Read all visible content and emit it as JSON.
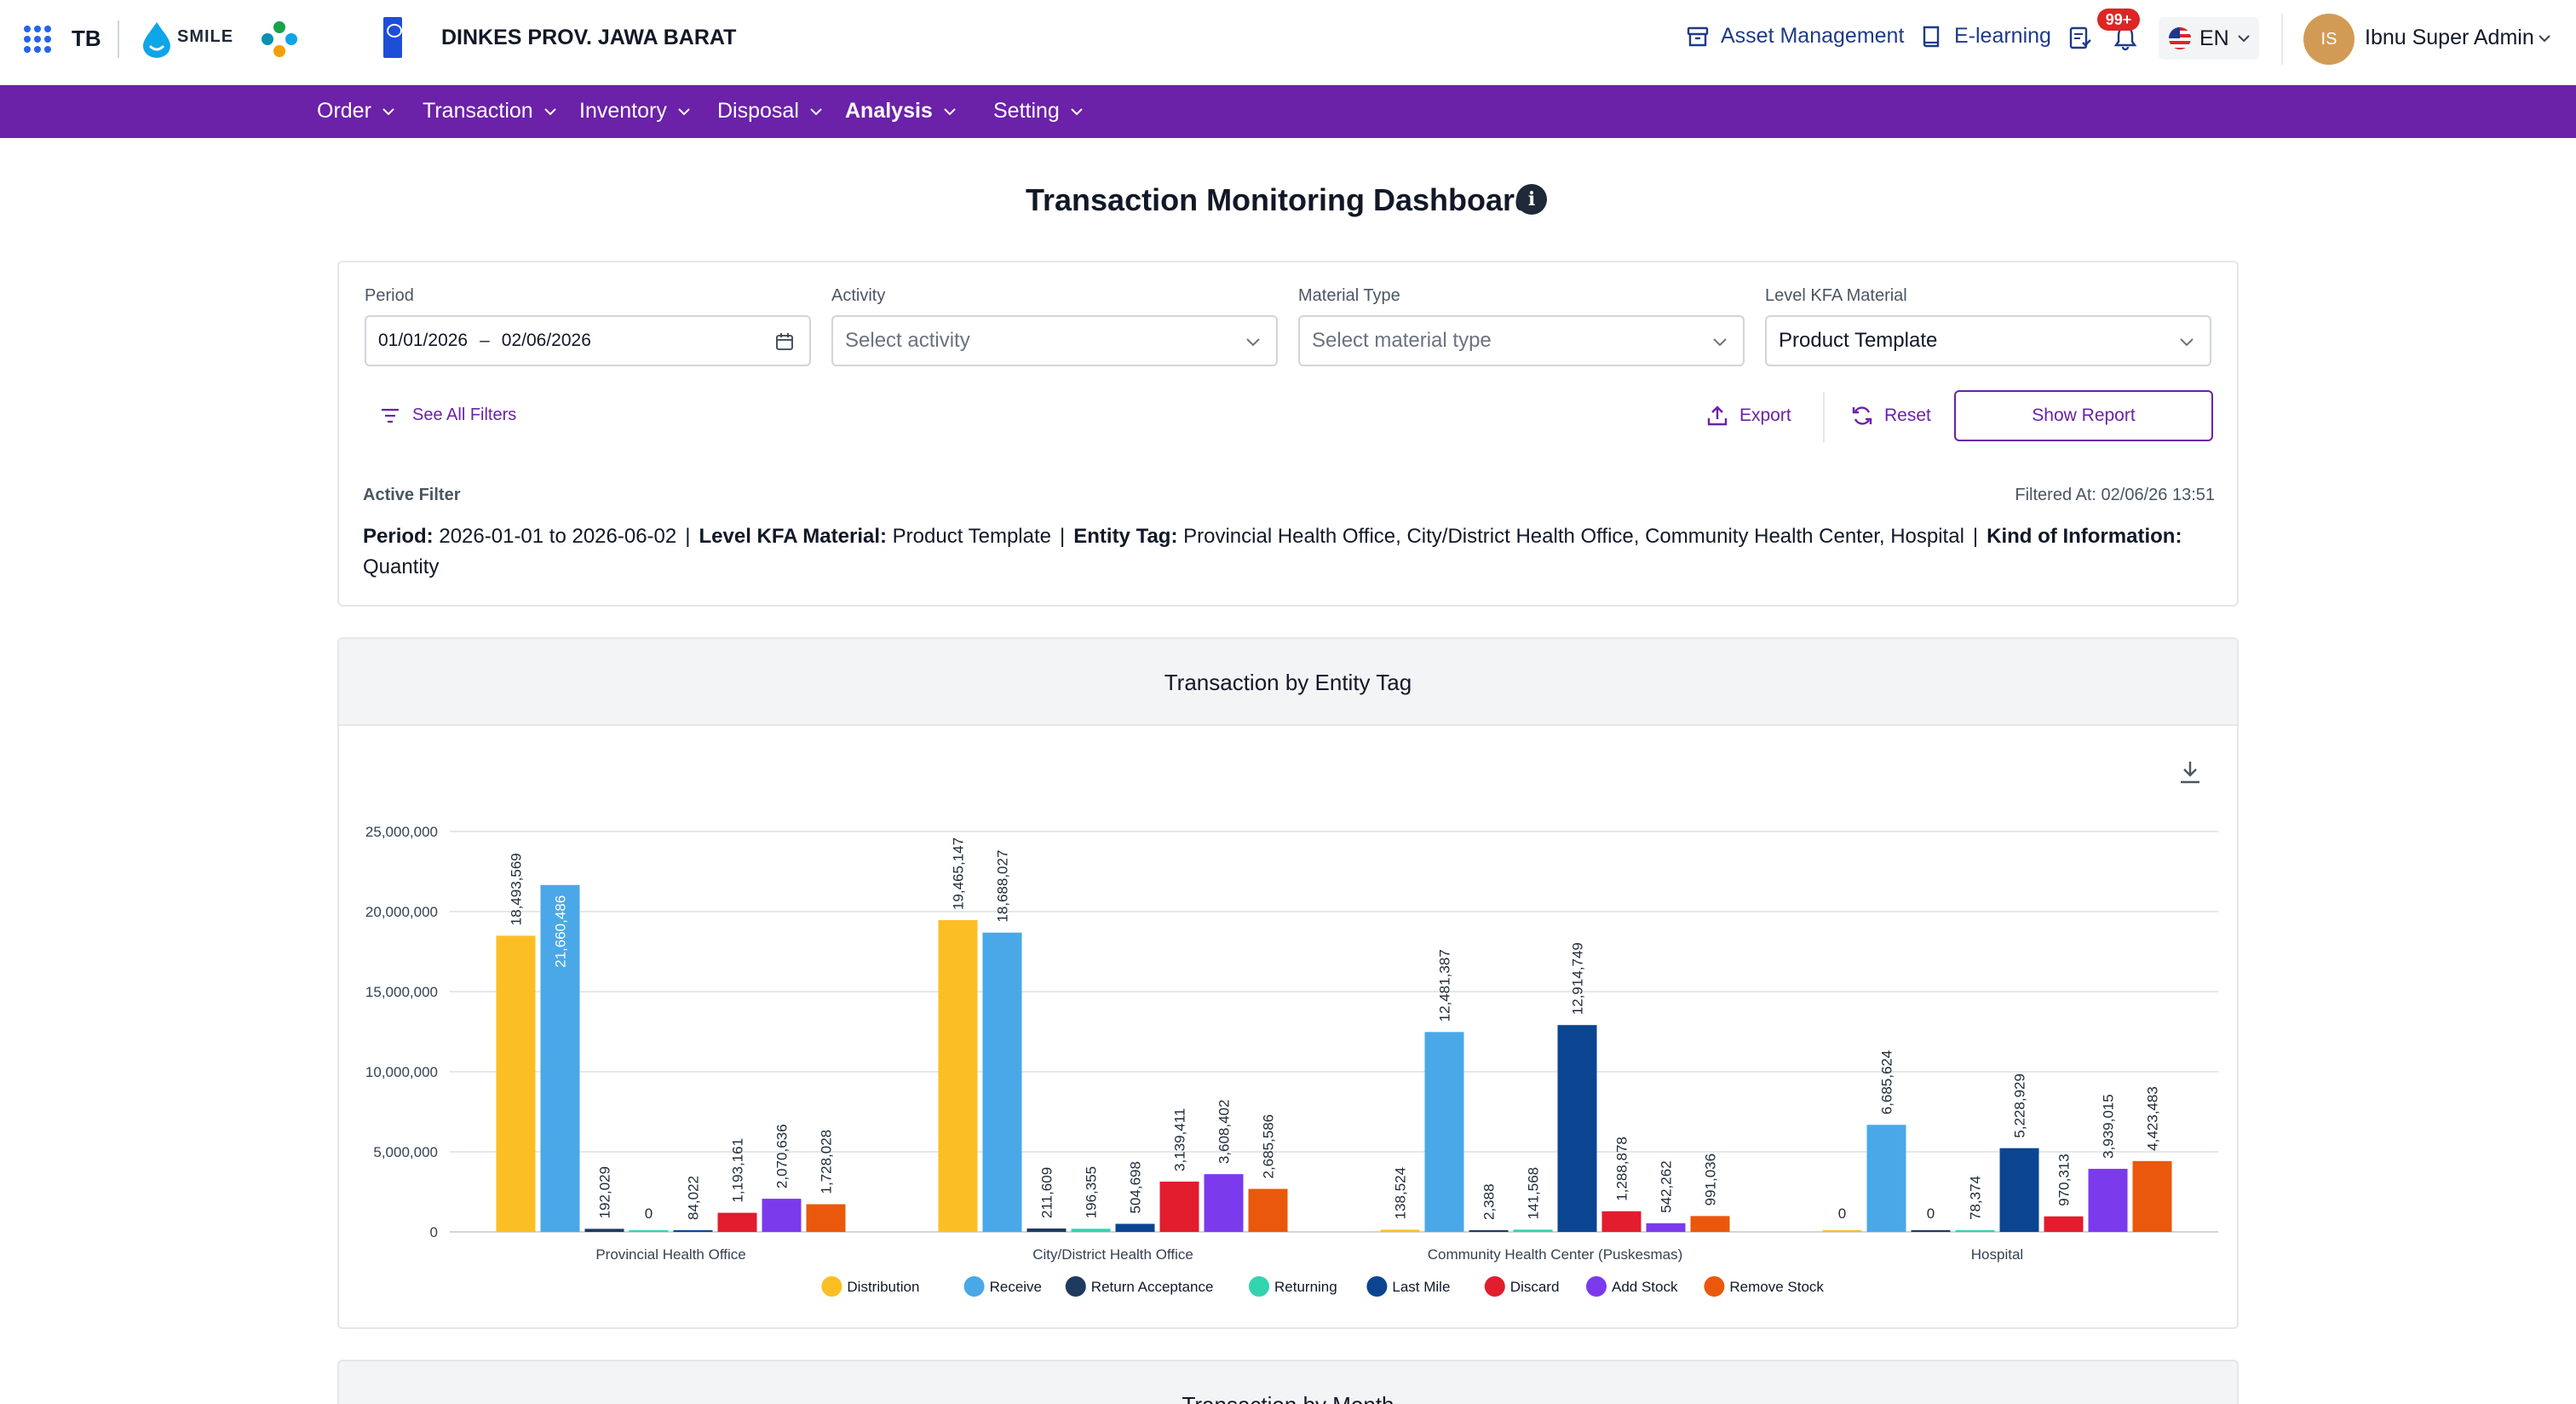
{
  "header": {
    "app_short": "TB",
    "smile_word": "SMILE",
    "org_title": "DINKES PROV. JAWA BARAT",
    "asset_link": "Asset Management",
    "elearning_link": "E-learning",
    "notif_badge": "99+",
    "language": "EN",
    "avatar_initials": "IS",
    "user_name": "Ibnu Super Admin"
  },
  "nav": {
    "items": [
      {
        "label": "Order"
      },
      {
        "label": "Transaction"
      },
      {
        "label": "Inventory"
      },
      {
        "label": "Disposal"
      },
      {
        "label": "Analysis"
      },
      {
        "label": "Setting"
      }
    ]
  },
  "page": {
    "title": "Transaction Monitoring Dashboard",
    "info_glyph": "i"
  },
  "filters": {
    "period_label": "Period",
    "period_start": "01/01/2026",
    "period_end": "02/06/2026",
    "activity_label": "Activity",
    "activity_placeholder": "Select activity",
    "material_type_label": "Material Type",
    "material_type_placeholder": "Select material type",
    "kfa_label": "Level KFA Material",
    "kfa_value": "Product Template",
    "see_all": "See All Filters",
    "export": "Export",
    "reset": "Reset",
    "show_report": "Show Report",
    "active_filter_label": "Active Filter",
    "filtered_at": "Filtered At: 02/06/26 13:51",
    "active": {
      "period_key": "Period:",
      "period_val": "2026-01-01 to 2026-06-02",
      "kfa_key": "Level KFA Material:",
      "kfa_val": "Product Template",
      "entity_key": "Entity Tag:",
      "entity_val": "Provincial Health Office, City/District Health Office, Community Health Center, Hospital",
      "kind_key": "Kind of Information:",
      "kind_val": "Quantity"
    }
  },
  "chart_card": {
    "title": "Transaction by Entity Tag"
  },
  "month_card": {
    "title": "Transaction by Month"
  },
  "chart_data": {
    "type": "bar",
    "title": "Transaction by Entity Tag",
    "xlabel": "",
    "ylabel": "",
    "ylim": [
      0,
      25000000
    ],
    "yticks": [
      0,
      5000000,
      10000000,
      15000000,
      20000000,
      25000000
    ],
    "ytick_labels": [
      "0",
      "5,000,000",
      "10,000,000",
      "15,000,000",
      "20,000,000",
      "25,000,000"
    ],
    "grid": true,
    "legend": "bottom",
    "categories": [
      "Provincial Health Office",
      "City/District Health Office",
      "Community Health Center (Puskesmas)",
      "Hospital"
    ],
    "series": [
      {
        "name": "Distribution",
        "color": "#fbbf24",
        "values": [
          18493569,
          19465147,
          138524,
          0
        ],
        "labels": [
          "18,493,569",
          "19,465,147",
          "138,524",
          "0"
        ]
      },
      {
        "name": "Receive",
        "color": "#4aa8e8",
        "values": [
          21660486,
          18688027,
          12481387,
          6685624
        ],
        "labels": [
          "21,660,486",
          "18,688,027",
          "12,481,387",
          "6,685,624"
        ]
      },
      {
        "name": "Return Acceptance",
        "color": "#1e3a5f",
        "values": [
          192029,
          211609,
          2388,
          0
        ],
        "labels": [
          "192,029",
          "211,609",
          "2,388",
          "0"
        ]
      },
      {
        "name": "Returning",
        "color": "#34d3b0",
        "values": [
          0,
          196355,
          141568,
          78374
        ],
        "labels": [
          "0",
          "196,355",
          "141,568",
          "78,374"
        ]
      },
      {
        "name": "Last Mile",
        "color": "#0b4591",
        "values": [
          84022,
          504698,
          12914749,
          5228929
        ],
        "labels": [
          "84,022",
          "504,698",
          "12,914,749",
          "5,228,929"
        ]
      },
      {
        "name": "Discard",
        "color": "#e11d2e",
        "values": [
          1193161,
          3139411,
          1288878,
          970313
        ],
        "labels": [
          "1,193,161",
          "3,139,411",
          "1,288,878",
          "970,313"
        ]
      },
      {
        "name": "Add Stock",
        "color": "#7c3aed",
        "values": [
          2070636,
          3608402,
          542262,
          3939015
        ],
        "labels": [
          "2,070,636",
          "3,608,402",
          "542,262",
          "3,939,015"
        ]
      },
      {
        "name": "Remove Stock",
        "color": "#ea580c",
        "values": [
          1728028,
          2685586,
          991036,
          4423483
        ],
        "labels": [
          "1,728,028",
          "2,685,586",
          "991,036",
          "4,423,483"
        ]
      }
    ]
  }
}
